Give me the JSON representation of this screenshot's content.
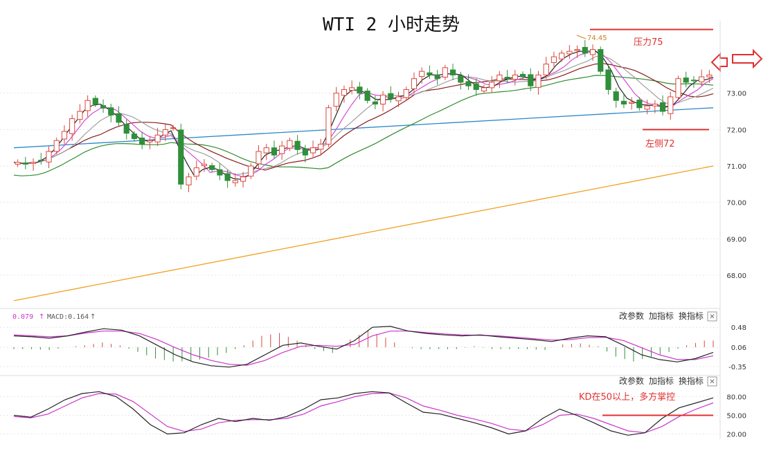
{
  "title": "WTI 2 小时走势",
  "colors": {
    "up": "#d9463a",
    "down": "#2f8f3a",
    "annot": "#e03030",
    "ma_short": "#222222",
    "ma_pink": "#d24bd2",
    "ma_gray": "#a0a0a0",
    "ma_brown": "#8b1a1a",
    "ma_green": "#2e8b2e",
    "ma_blue": "#2a86c8",
    "ma_orange": "#f0a020",
    "macd_line": "#222222",
    "signal_line": "#cc33cc",
    "k_line": "#222222",
    "d_line": "#cc33cc"
  },
  "annotations": {
    "resistance_label": "压力75",
    "support_label": "左侧72",
    "peak_label": "74.45",
    "kd_label": "KD在50以上，多方掌控"
  },
  "macd_header": {
    "dif": "0.079",
    "macd": "MACD:0.164"
  },
  "panel_buttons": {
    "params": "改参数",
    "add": "加指标",
    "switch": "换指标",
    "close": "✕"
  },
  "chart_data": [
    {
      "type": "candlestick",
      "title": "WTI 2 小时走势",
      "ylim": [
        67.2,
        74.8
      ],
      "yticks": [
        "68.00",
        "69.00",
        "70.00",
        "71.00",
        "72.00",
        "73.00"
      ],
      "ytick_values": [
        68,
        69,
        70,
        71,
        72,
        73
      ],
      "reference_lines": [
        {
          "label": "压力75",
          "value": 74.75
        },
        {
          "label": "左侧72",
          "value": 72.0
        }
      ],
      "peak": 74.45,
      "close_series": [
        71.1,
        71.05,
        71.1,
        71.15,
        71.4,
        71.7,
        71.95,
        72.3,
        72.5,
        72.8,
        72.7,
        72.6,
        72.4,
        72.2,
        71.9,
        71.75,
        71.6,
        71.7,
        71.85,
        72.0,
        72.05,
        70.5,
        70.7,
        70.95,
        71.05,
        70.9,
        70.75,
        70.6,
        70.6,
        70.7,
        71.0,
        71.4,
        71.5,
        71.3,
        71.55,
        71.7,
        71.45,
        71.3,
        71.5,
        71.6,
        72.6,
        73.0,
        73.1,
        73.15,
        73.0,
        72.8,
        72.7,
        72.95,
        72.85,
        72.9,
        73.1,
        73.4,
        73.6,
        73.5,
        73.4,
        73.7,
        73.5,
        73.3,
        73.2,
        73.1,
        73.15,
        73.3,
        73.5,
        73.4,
        73.5,
        73.45,
        73.2,
        73.5,
        73.8,
        74.0,
        74.1,
        74.15,
        74.2,
        74.1,
        74.2,
        73.6,
        73.1,
        72.8,
        72.7,
        72.75,
        72.6,
        72.65,
        72.7,
        72.5,
        72.9,
        73.4,
        73.3,
        73.35,
        73.45,
        73.5
      ],
      "moving_averages": [
        {
          "color_key": "ma_orange",
          "start": 67.3,
          "end": 71.0
        },
        {
          "color_key": "ma_blue",
          "start": 71.5,
          "end": 72.6
        }
      ]
    },
    {
      "type": "line",
      "ylim": [
        -0.45,
        0.6
      ],
      "yticks": [
        "0.48",
        "0.06",
        "-0.35"
      ],
      "ytick_values": [
        0.48,
        0.06,
        -0.35
      ],
      "series": [
        {
          "color_key": "macd_line",
          "values": [
            0.3,
            0.28,
            0.25,
            0.3,
            0.38,
            0.45,
            0.42,
            0.3,
            0.1,
            -0.1,
            -0.25,
            -0.33,
            -0.36,
            -0.3,
            -0.1,
            0.1,
            0.15,
            0.08,
            0.02,
            0.2,
            0.48,
            0.5,
            0.4,
            0.35,
            0.32,
            0.3,
            0.32,
            0.28,
            0.25,
            0.22,
            0.18,
            0.25,
            0.3,
            0.28,
            0.1,
            -0.1,
            -0.2,
            -0.25,
            -0.18,
            -0.05
          ]
        },
        {
          "color_key": "signal_line",
          "values": [
            0.32,
            0.3,
            0.28,
            0.3,
            0.36,
            0.4,
            0.4,
            0.35,
            0.22,
            0.05,
            -0.1,
            -0.22,
            -0.3,
            -0.32,
            -0.22,
            -0.05,
            0.08,
            0.1,
            0.08,
            0.12,
            0.3,
            0.4,
            0.4,
            0.37,
            0.34,
            0.32,
            0.31,
            0.3,
            0.27,
            0.24,
            0.21,
            0.22,
            0.26,
            0.27,
            0.2,
            0.05,
            -0.1,
            -0.2,
            -0.2,
            -0.12
          ]
        }
      ],
      "histogram": [
        -0.04,
        -0.04,
        -0.06,
        0.0,
        0.04,
        0.1,
        0.04,
        -0.1,
        -0.24,
        -0.3,
        -0.3,
        -0.22,
        -0.12,
        0.04,
        0.24,
        0.3,
        0.14,
        -0.04,
        -0.12,
        0.16,
        0.36,
        0.2,
        0.0,
        -0.04,
        -0.04,
        -0.04,
        0.02,
        -0.04,
        -0.04,
        -0.04,
        -0.06,
        0.06,
        0.08,
        0.02,
        -0.2,
        -0.3,
        -0.2,
        -0.1,
        0.04,
        0.14
      ]
    },
    {
      "type": "line",
      "ylim": [
        15,
        95
      ],
      "yticks": [
        "80.00",
        "50.00",
        "20.00"
      ],
      "ytick_values": [
        80,
        50,
        20
      ],
      "reference_lines": [
        {
          "value": 50
        }
      ],
      "series": [
        {
          "color_key": "k_line",
          "values": [
            50,
            47,
            60,
            75,
            85,
            88,
            80,
            60,
            35,
            20,
            22,
            35,
            45,
            40,
            45,
            42,
            48,
            60,
            75,
            78,
            85,
            88,
            86,
            70,
            55,
            52,
            45,
            38,
            30,
            20,
            25,
            45,
            60,
            50,
            38,
            25,
            18,
            22,
            45,
            62,
            70,
            78
          ]
        },
        {
          "color_key": "d_line",
          "values": [
            48,
            46,
            52,
            65,
            78,
            85,
            84,
            72,
            52,
            32,
            24,
            28,
            38,
            42,
            43,
            43,
            45,
            52,
            65,
            72,
            80,
            85,
            86,
            78,
            65,
            58,
            50,
            44,
            37,
            28,
            25,
            35,
            50,
            52,
            45,
            35,
            25,
            22,
            32,
            48,
            60,
            70
          ]
        }
      ]
    }
  ]
}
